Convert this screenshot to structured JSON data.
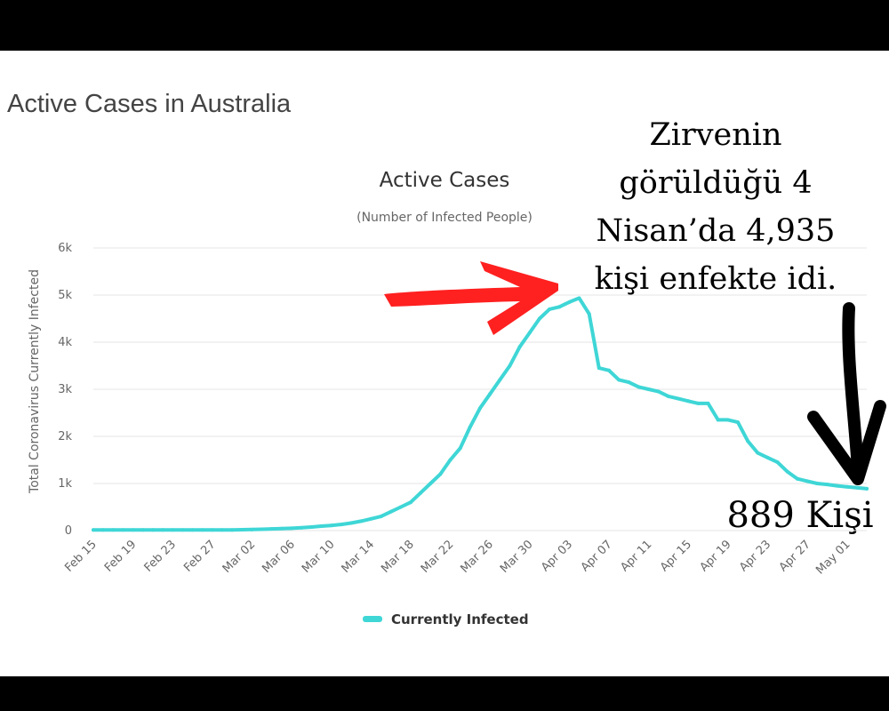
{
  "page_title": "Active Cases in Australia",
  "annotations": {
    "peak": "Zirvenin görüldüğü 4 Nisan’da 4,935 kişi enfekte idi.",
    "end": "889 Kişi"
  },
  "colors": {
    "series": "#3fd6d6",
    "arrow_red": "#ff2020",
    "arrow_black": "#000000",
    "grid": "#e6e6e6"
  },
  "chart_data": {
    "type": "line",
    "title": "Active Cases",
    "subtitle": "(Number of Infected People)",
    "ylabel": "Total Coronavirus Currently Infected",
    "xlabel": "",
    "ylim": [
      0,
      6000
    ],
    "yticks": [
      "0",
      "1k",
      "2k",
      "3k",
      "4k",
      "5k",
      "6k"
    ],
    "ytick_values": [
      0,
      1000,
      2000,
      3000,
      4000,
      5000,
      6000
    ],
    "xticks": [
      "Feb 15",
      "Feb 19",
      "Feb 23",
      "Feb 27",
      "Mar 02",
      "Mar 06",
      "Mar 10",
      "Mar 14",
      "Mar 18",
      "Mar 22",
      "Mar 26",
      "Mar 30",
      "Apr 03",
      "Apr 07",
      "Apr 11",
      "Apr 15",
      "Apr 19",
      "Apr 23",
      "Apr 27",
      "May 01"
    ],
    "grid": true,
    "legend_position": "bottom-center",
    "series": [
      {
        "name": "Currently Infected",
        "x": [
          "Feb 15",
          "Feb 16",
          "Feb 17",
          "Feb 18",
          "Feb 19",
          "Feb 20",
          "Feb 21",
          "Feb 22",
          "Feb 23",
          "Feb 24",
          "Feb 25",
          "Feb 26",
          "Feb 27",
          "Feb 28",
          "Feb 29",
          "Mar 01",
          "Mar 02",
          "Mar 03",
          "Mar 04",
          "Mar 05",
          "Mar 06",
          "Mar 07",
          "Mar 08",
          "Mar 09",
          "Mar 10",
          "Mar 11",
          "Mar 12",
          "Mar 13",
          "Mar 14",
          "Mar 15",
          "Mar 16",
          "Mar 17",
          "Mar 18",
          "Mar 19",
          "Mar 20",
          "Mar 21",
          "Mar 22",
          "Mar 23",
          "Mar 24",
          "Mar 25",
          "Mar 26",
          "Mar 27",
          "Mar 28",
          "Mar 29",
          "Mar 30",
          "Mar 31",
          "Apr 01",
          "Apr 02",
          "Apr 03",
          "Apr 04",
          "Apr 05",
          "Apr 06",
          "Apr 07",
          "Apr 08",
          "Apr 09",
          "Apr 10",
          "Apr 11",
          "Apr 12",
          "Apr 13",
          "Apr 14",
          "Apr 15",
          "Apr 16",
          "Apr 17",
          "Apr 18",
          "Apr 19",
          "Apr 20",
          "Apr 21",
          "Apr 22",
          "Apr 23",
          "Apr 24",
          "Apr 25",
          "Apr 26",
          "Apr 27",
          "Apr 28",
          "Apr 29",
          "Apr 30",
          "May 01",
          "May 02",
          "May 03"
        ],
        "values": [
          15,
          15,
          15,
          15,
          15,
          15,
          15,
          15,
          15,
          15,
          15,
          15,
          15,
          15,
          15,
          18,
          22,
          28,
          35,
          42,
          50,
          60,
          75,
          95,
          110,
          130,
          160,
          200,
          250,
          300,
          400,
          500,
          600,
          800,
          1000,
          1200,
          1500,
          1750,
          2200,
          2600,
          2900,
          3200,
          3500,
          3900,
          4200,
          4500,
          4700,
          4750,
          4850,
          4935,
          4600,
          3450,
          3400,
          3200,
          3150,
          3050,
          3000,
          2950,
          2850,
          2800,
          2750,
          2700,
          2700,
          2350,
          2350,
          2300,
          1900,
          1650,
          1550,
          1450,
          1250,
          1100,
          1050,
          1000,
          980,
          950,
          930,
          910,
          889
        ]
      }
    ]
  }
}
